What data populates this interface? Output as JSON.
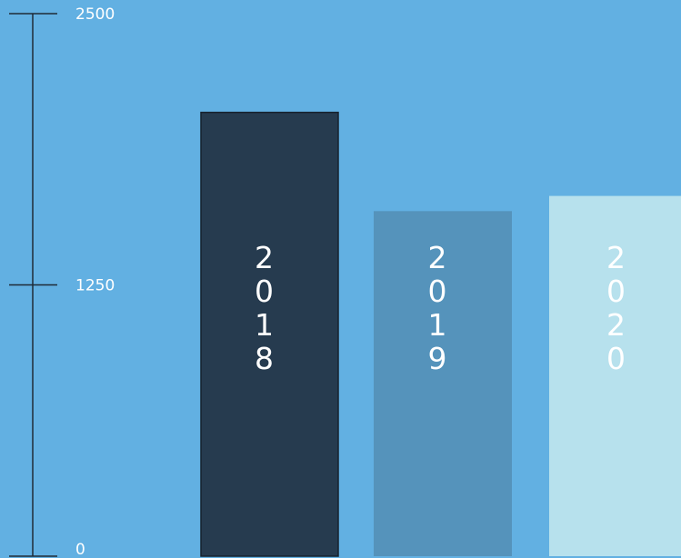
{
  "chart_data": {
    "type": "bar",
    "title": "",
    "xlabel": "",
    "ylabel": "",
    "categories": [
      "2018",
      "2019",
      "2020"
    ],
    "values": [
      2045,
      1590,
      1660
    ],
    "ylim": [
      0,
      2500
    ],
    "yticks": [
      {
        "value": 0,
        "label": "0"
      },
      {
        "value": 1250,
        "label": "1250"
      },
      {
        "value": 2500,
        "label": "2500"
      }
    ],
    "grid": false,
    "legend": "none",
    "colors": {
      "background": "#62b0e2",
      "bars": [
        "#263b4f",
        "#5593bb",
        "#b7e1ed"
      ],
      "axis": "#1f2a36",
      "text": "#ffffff"
    }
  }
}
